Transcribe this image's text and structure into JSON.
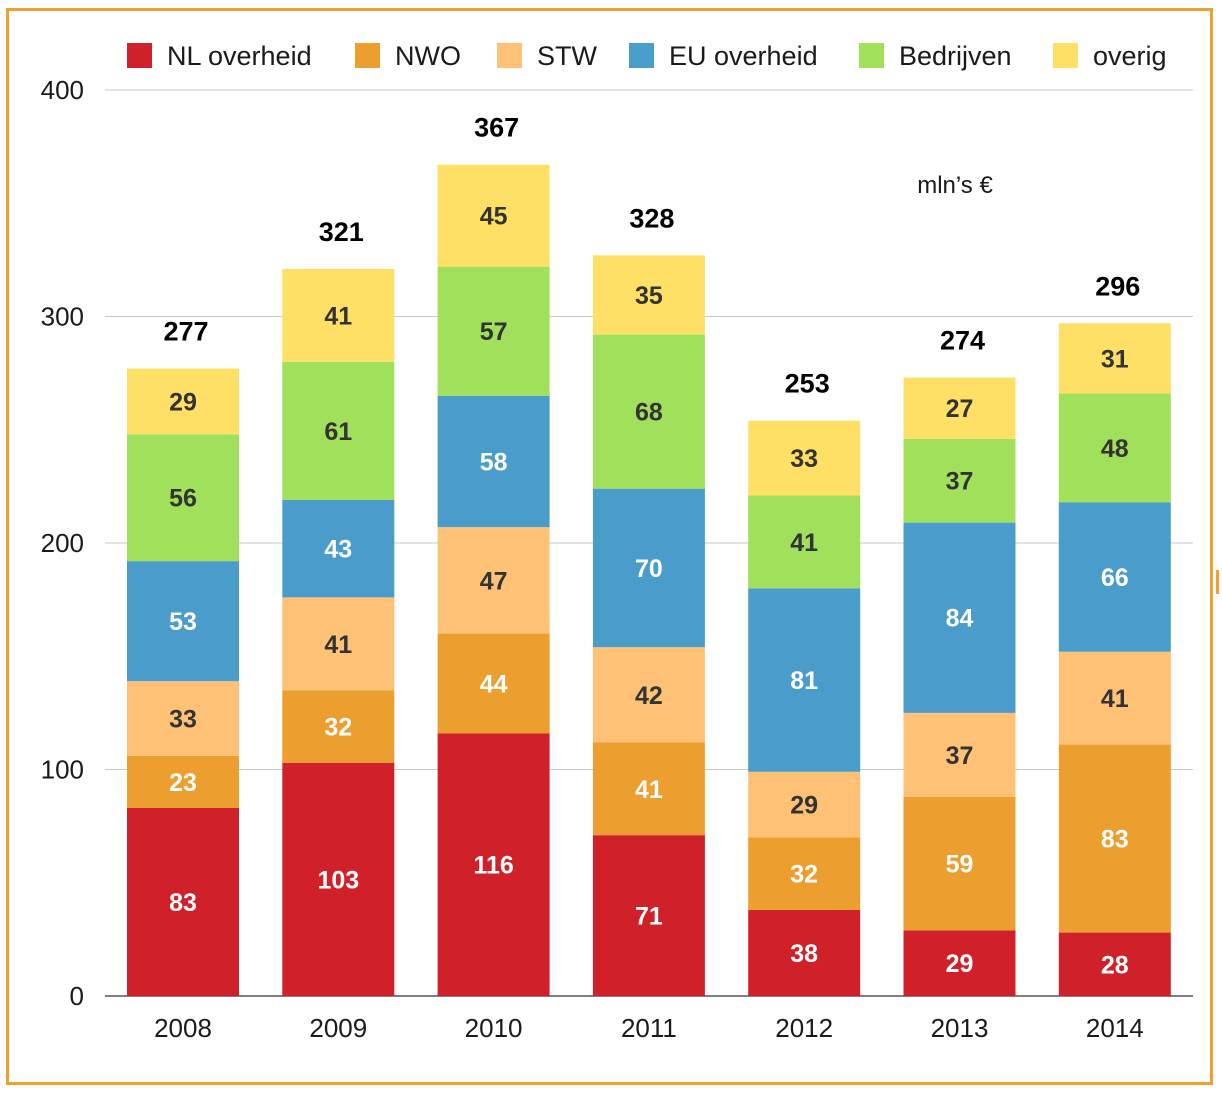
{
  "chart_data": {
    "type": "bar",
    "stacked": true,
    "categories": [
      "2008",
      "2009",
      "2010",
      "2011",
      "2012",
      "2013",
      "2014"
    ],
    "series": [
      {
        "name": "NL overheid",
        "color": "#d0202a",
        "label_color": "#ffffff",
        "values": [
          83,
          103,
          116,
          71,
          38,
          29,
          28
        ]
      },
      {
        "name": "NWO",
        "color": "#ec9e2f",
        "label_color": "#ffffff",
        "values": [
          23,
          32,
          44,
          41,
          32,
          59,
          83
        ]
      },
      {
        "name": "STW",
        "color": "#fec175",
        "label_color": "#333333",
        "values": [
          33,
          41,
          47,
          42,
          29,
          37,
          41
        ]
      },
      {
        "name": "EU overheid",
        "color": "#4a9cca",
        "label_color": "#ffffff",
        "values": [
          53,
          43,
          58,
          70,
          81,
          84,
          66
        ]
      },
      {
        "name": "Bedrijven",
        "color": "#a1e05a",
        "label_color": "#333333",
        "values": [
          56,
          61,
          57,
          68,
          41,
          37,
          48
        ]
      },
      {
        "name": "overig",
        "color": "#fde065",
        "label_color": "#333333",
        "values": [
          29,
          41,
          45,
          35,
          33,
          27,
          31
        ]
      }
    ],
    "totals": [
      277,
      321,
      367,
      328,
      253,
      274,
      296
    ],
    "ylim": [
      0,
      400
    ],
    "yticks": [
      0,
      100,
      200,
      300,
      400
    ],
    "grid": true,
    "legend_position": "top",
    "unit_label": "mln’s €"
  }
}
